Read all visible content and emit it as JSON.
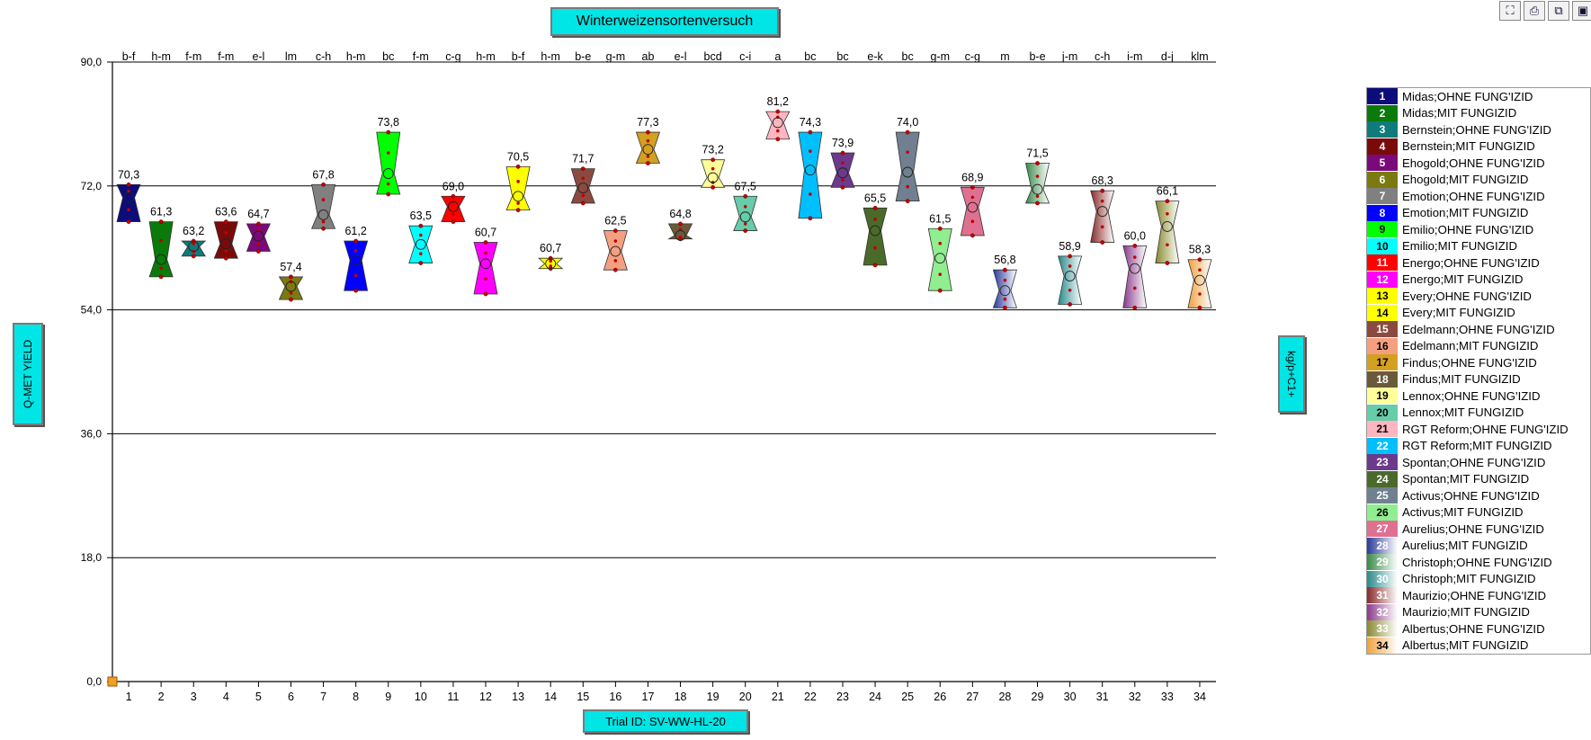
{
  "chart_data": {
    "type": "boxplot",
    "title": "Winterweizensortenversuch",
    "ylabel": "Q-MET YIELD",
    "y2label": "kg/p+C1+",
    "xlabel": "Trial ID: SV-WW-HL-20",
    "ylim": [
      0,
      90
    ],
    "yticks": [
      "0,0",
      "18,0",
      "36,0",
      "54,0",
      "72,0",
      "90,0"
    ],
    "grid": "horizontal",
    "legend_position": "right",
    "categories": [
      "1",
      "2",
      "3",
      "4",
      "5",
      "6",
      "7",
      "8",
      "9",
      "10",
      "11",
      "12",
      "13",
      "14",
      "15",
      "16",
      "17",
      "18",
      "19",
      "20",
      "21",
      "22",
      "23",
      "24",
      "25",
      "26",
      "27",
      "28",
      "29",
      "30",
      "31",
      "32",
      "33",
      "34"
    ],
    "values": [
      70.3,
      61.3,
      63.2,
      63.6,
      64.7,
      57.4,
      67.8,
      61.2,
      73.8,
      63.5,
      69.0,
      60.7,
      70.5,
      60.7,
      71.7,
      62.5,
      77.3,
      64.8,
      73.2,
      67.5,
      81.2,
      74.3,
      73.9,
      65.5,
      74.0,
      61.5,
      68.9,
      56.8,
      71.5,
      58.9,
      68.3,
      60.0,
      66.1,
      58.3
    ],
    "value_labels": [
      "70,3",
      "61,3",
      "63,2",
      "63,6",
      "64,7",
      "57,4",
      "67,8",
      "61,2",
      "73,8",
      "63,5",
      "69,0",
      "60,7",
      "70,5",
      "60,7",
      "71,7",
      "62,5",
      "77,3",
      "64,8",
      "73,2",
      "67,5",
      "81,2",
      "74,3",
      "73,9",
      "65,5",
      "74,0",
      "61,5",
      "68,9",
      "56,8",
      "71,5",
      "58,9",
      "68,3",
      "60,0",
      "66,1",
      "58,3"
    ],
    "box_top": [
      72.2,
      66.8,
      64.0,
      66.8,
      66.5,
      58.8,
      72.2,
      64.0,
      79.8,
      66.2,
      70.5,
      63.8,
      74.8,
      61.5,
      74.5,
      65.5,
      79.8,
      66.5,
      75.8,
      70.5,
      82.8,
      79.8,
      76.8,
      68.8,
      79.8,
      65.8,
      71.8,
      59.8,
      75.3,
      61.8,
      71.3,
      63.3,
      69.8,
      61.3
    ],
    "box_bottom": [
      66.8,
      58.8,
      61.8,
      61.5,
      62.5,
      55.5,
      65.8,
      56.8,
      70.8,
      60.8,
      66.8,
      56.3,
      68.5,
      60.0,
      69.5,
      59.8,
      75.3,
      64.3,
      71.8,
      65.5,
      78.8,
      67.3,
      71.8,
      60.5,
      69.8,
      56.8,
      64.8,
      54.3,
      69.5,
      54.8,
      63.8,
      54.3,
      60.8,
      54.3
    ],
    "letters": [
      "b-f",
      "h-m",
      "f-m",
      "f-m",
      "e-l",
      "lm",
      "c-h",
      "h-m",
      "bc",
      "f-m",
      "c-g",
      "h-m",
      "b-f",
      "h-m",
      "b-e",
      "g-m",
      "ab",
      "e-l",
      "bcd",
      "c-i",
      "a",
      "bc",
      "bc",
      "e-k",
      "bc",
      "g-m",
      "c-g",
      "m",
      "b-e",
      "j-m",
      "c-h",
      "i-m",
      "d-j",
      "klm"
    ],
    "series": [
      {
        "num": "1",
        "name": "Midas;OHNE FUNG'IZID",
        "color": "#0c0c7a"
      },
      {
        "num": "2",
        "name": "Midas;MIT FUNGIZID",
        "color": "#0a7a0a"
      },
      {
        "num": "3",
        "name": "Bernstein;OHNE FUNG'IZID",
        "color": "#0f7b7b"
      },
      {
        "num": "4",
        "name": "Bernstein;MIT FUNGIZID",
        "color": "#7a0a0a"
      },
      {
        "num": "5",
        "name": "Ehogold;OHNE FUNG'IZID",
        "color": "#7a0a7a"
      },
      {
        "num": "6",
        "name": "Ehogold;MIT FUNGIZID",
        "color": "#7a7a10"
      },
      {
        "num": "7",
        "name": "Emotion;OHNE FUNG'IZID",
        "color": "#808080"
      },
      {
        "num": "8",
        "name": "Emotion;MIT FUNGIZID",
        "color": "#0000ff"
      },
      {
        "num": "9",
        "name": "Emilio;OHNE FUNG'IZID",
        "color": "#00ff00"
      },
      {
        "num": "10",
        "name": "Emilio;MIT FUNGIZID",
        "color": "#00ffff"
      },
      {
        "num": "11",
        "name": "Energo;OHNE FUNG'IZID",
        "color": "#ff0000"
      },
      {
        "num": "12",
        "name": "Energo;MIT FUNGIZID",
        "color": "#ff00ff"
      },
      {
        "num": "13",
        "name": "Every;OHNE FUNG'IZID",
        "color": "#ffff00"
      },
      {
        "num": "14",
        "name": "Every;MIT FUNGIZID",
        "color": "#ffff00"
      },
      {
        "num": "15",
        "name": "Edelmann;OHNE FUNG'IZID",
        "color": "#8b4a40"
      },
      {
        "num": "16",
        "name": "Edelmann;MIT FUNGIZID",
        "color": "#f4a080"
      },
      {
        "num": "17",
        "name": "Findus;OHNE FUNG'IZID",
        "color": "#d4a020"
      },
      {
        "num": "18",
        "name": "Findus;MIT FUNGIZID",
        "color": "#6b5a3a"
      },
      {
        "num": "19",
        "name": "Lennox;OHNE FUNG'IZID",
        "color": "#ffff99"
      },
      {
        "num": "20",
        "name": "Lennox;MIT FUNGIZID",
        "color": "#66ccaa"
      },
      {
        "num": "21",
        "name": "RGT Reform;OHNE FUNG'IZID",
        "color": "#ffb6c1"
      },
      {
        "num": "22",
        "name": "RGT Reform;MIT FUNGIZID",
        "color": "#00bfff"
      },
      {
        "num": "23",
        "name": "Spontan;OHNE FUNG'IZID",
        "color": "#6b3a8b"
      },
      {
        "num": "24",
        "name": "Spontan;MIT FUNGIZID",
        "color": "#4a6a2a"
      },
      {
        "num": "25",
        "name": "Activus;OHNE FUNG'IZID",
        "color": "#708090"
      },
      {
        "num": "26",
        "name": "Activus;MIT FUNGIZID",
        "color": "#90ee90"
      },
      {
        "num": "27",
        "name": "Aurelius;OHNE FUNG'IZID",
        "color": "#e07090"
      },
      {
        "num": "28",
        "name": "Aurelius;MIT FUNGIZID",
        "color": "#2a3a9a"
      },
      {
        "num": "29",
        "name": "Christoph;OHNE FUNG'IZID",
        "color": "#3a8a4a"
      },
      {
        "num": "30",
        "name": "Christoph;MIT FUNGIZID",
        "color": "#2a8a8a"
      },
      {
        "num": "31",
        "name": "Maurizio;OHNE FUNG'IZID",
        "color": "#8a2a2a"
      },
      {
        "num": "32",
        "name": "Maurizio;MIT FUNGIZID",
        "color": "#8a3a8a"
      },
      {
        "num": "33",
        "name": "Albertus;OHNE FUNG'IZID",
        "color": "#8a8a30"
      },
      {
        "num": "34",
        "name": "Albertus;MIT FUNGIZID",
        "color": "#f0a040"
      }
    ],
    "fills": [
      {
        "type": "solid",
        "color": "#0c0c7a"
      },
      {
        "type": "solid",
        "color": "#0a7a0a"
      },
      {
        "type": "solid",
        "color": "#0f7b7b"
      },
      {
        "type": "solid",
        "color": "#7a0a0a"
      },
      {
        "type": "solid",
        "color": "#7a0a7a"
      },
      {
        "type": "solid",
        "color": "#7a7a10"
      },
      {
        "type": "solid",
        "color": "#808080"
      },
      {
        "type": "solid",
        "color": "#0000ff"
      },
      {
        "type": "solid",
        "color": "#00ff00"
      },
      {
        "type": "solid",
        "color": "#00ffff"
      },
      {
        "type": "solid",
        "color": "#ff0000"
      },
      {
        "type": "solid",
        "color": "#ff00ff"
      },
      {
        "type": "solid",
        "color": "#ffff00"
      },
      {
        "type": "solid",
        "color": "#ffff00"
      },
      {
        "type": "solid",
        "color": "#8b4a40"
      },
      {
        "type": "solid",
        "color": "#f4a080"
      },
      {
        "type": "solid",
        "color": "#d4a020"
      },
      {
        "type": "solid",
        "color": "#6b5a3a"
      },
      {
        "type": "solid",
        "color": "#ffff99"
      },
      {
        "type": "solid",
        "color": "#66ccaa"
      },
      {
        "type": "solid",
        "color": "#ffb6c1"
      },
      {
        "type": "solid",
        "color": "#00bfff"
      },
      {
        "type": "solid",
        "color": "#6b3a8b"
      },
      {
        "type": "solid",
        "color": "#4a6a2a"
      },
      {
        "type": "solid",
        "color": "#708090"
      },
      {
        "type": "solid",
        "color": "#90ee90"
      },
      {
        "type": "solid",
        "color": "#e07090"
      },
      {
        "type": "gradient",
        "color": "#2a3a9a"
      },
      {
        "type": "gradient",
        "color": "#3a8a4a"
      },
      {
        "type": "gradient",
        "color": "#2a8a8a"
      },
      {
        "type": "gradient",
        "color": "#8a2a2a"
      },
      {
        "type": "gradient",
        "color": "#8a3a8a"
      },
      {
        "type": "gradient",
        "color": "#8a8a30"
      },
      {
        "type": "gradient",
        "color": "#f0a040"
      }
    ]
  },
  "toolbar": {
    "icons": [
      "fit-screen-icon",
      "print-icon",
      "copy-icon",
      "save-icon"
    ],
    "glyphs": [
      "⛶",
      "⎙",
      "⧉",
      "▣"
    ]
  }
}
